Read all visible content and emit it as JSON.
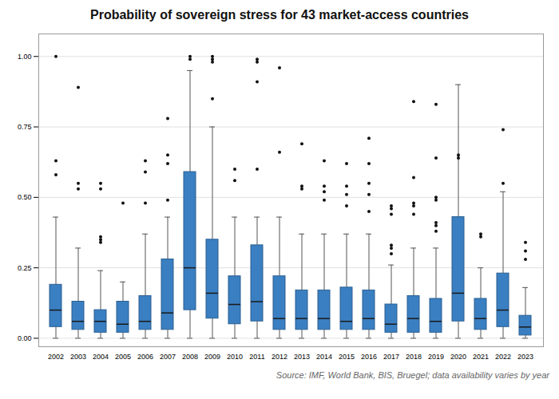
{
  "chart_data": {
    "type": "box",
    "title": "Probability of sovereign stress for 43 market-access countries",
    "annotations": [
      "Source: IMF, World Bank, BIS, Bruegel; data availability varies by year"
    ],
    "categories": [
      "2002",
      "2003",
      "2004",
      "2005",
      "2006",
      "2007",
      "2008",
      "2009",
      "2010",
      "2011",
      "2012",
      "2013",
      "2014",
      "2015",
      "2016",
      "2017",
      "2018",
      "2019",
      "2020",
      "2021",
      "2022",
      "2023"
    ],
    "q1": [
      0.04,
      0.03,
      0.02,
      0.02,
      0.03,
      0.03,
      0.1,
      0.07,
      0.05,
      0.06,
      0.03,
      0.03,
      0.03,
      0.03,
      0.03,
      0.02,
      0.02,
      0.02,
      0.06,
      0.03,
      0.04,
      0.01
    ],
    "median": [
      0.1,
      0.06,
      0.06,
      0.05,
      0.06,
      0.09,
      0.25,
      0.16,
      0.12,
      0.13,
      0.07,
      0.07,
      0.07,
      0.06,
      0.07,
      0.05,
      0.07,
      0.06,
      0.16,
      0.07,
      0.1,
      0.04
    ],
    "q3": [
      0.19,
      0.13,
      0.1,
      0.13,
      0.15,
      0.28,
      0.59,
      0.35,
      0.22,
      0.33,
      0.22,
      0.17,
      0.17,
      0.18,
      0.17,
      0.12,
      0.15,
      0.14,
      0.43,
      0.14,
      0.23,
      0.08
    ],
    "whislo": [
      0.0,
      0.0,
      0.0,
      0.0,
      0.0,
      0.0,
      0.0,
      0.0,
      0.0,
      0.0,
      0.0,
      0.0,
      0.0,
      0.0,
      0.0,
      0.0,
      0.0,
      0.0,
      0.0,
      0.0,
      0.0,
      0.0
    ],
    "whishi": [
      0.43,
      0.32,
      0.24,
      0.2,
      0.37,
      0.43,
      0.95,
      0.75,
      0.43,
      0.43,
      0.43,
      0.37,
      0.37,
      0.37,
      0.37,
      0.26,
      0.32,
      0.32,
      0.9,
      0.25,
      0.52,
      0.18
    ],
    "fliers": [
      [
        0.58,
        0.63,
        1.0
      ],
      [
        0.53,
        0.55,
        0.89
      ],
      [
        0.34,
        0.35,
        0.36,
        0.53,
        0.55
      ],
      [
        0.48
      ],
      [
        0.48,
        0.59,
        0.63
      ],
      [
        0.49,
        0.62,
        0.65,
        0.78
      ],
      [
        0.99,
        1.0
      ],
      [
        0.85,
        0.98,
        0.99,
        1.0
      ],
      [
        0.56,
        0.6
      ],
      [
        0.6,
        0.91,
        0.98,
        0.99
      ],
      [
        0.66,
        0.96
      ],
      [
        0.53,
        0.54,
        0.69
      ],
      [
        0.49,
        0.52,
        0.54,
        0.63
      ],
      [
        0.47,
        0.51,
        0.54,
        0.62
      ],
      [
        0.45,
        0.51,
        0.55,
        0.62,
        0.71
      ],
      [
        0.3,
        0.32,
        0.33,
        0.44,
        0.46,
        0.47
      ],
      [
        0.44,
        0.47,
        0.48,
        0.57,
        0.84
      ],
      [
        0.38,
        0.4,
        0.41,
        0.49,
        0.5,
        0.64,
        0.83
      ],
      [
        0.64,
        0.65
      ],
      [
        0.36,
        0.37
      ],
      [
        0.55,
        0.74
      ],
      [
        0.28,
        0.31,
        0.34
      ]
    ],
    "color": "#3a7fc1",
    "ylim": [
      -0.03,
      1.08
    ],
    "yticks": [
      {
        "value": 0.0,
        "label": "0.00"
      },
      {
        "value": 0.25,
        "label": "0.25"
      },
      {
        "value": 0.5,
        "label": "0.50"
      },
      {
        "value": 0.75,
        "label": "0.75"
      },
      {
        "value": 1.0,
        "label": "1.00"
      }
    ],
    "grid": true
  }
}
